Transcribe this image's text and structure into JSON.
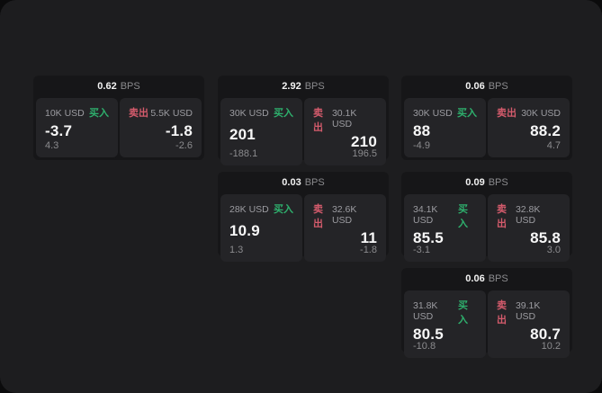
{
  "labels": {
    "bps_unit": "BPS",
    "buy": "买入",
    "sell": "卖出"
  },
  "colors": {
    "buy_green": "#2eb06d",
    "sell_red": "#d45b6c",
    "panel_bg": "#1d1d1f",
    "card_bg": "#161618",
    "tile_bg": "#242427"
  },
  "cards": [
    {
      "bps": "0.62",
      "buy": {
        "amount": "10K USD",
        "price": "-3.7",
        "change": "4.3"
      },
      "sell": {
        "amount": "5.5K USD",
        "price": "-1.8",
        "change": "-2.6"
      }
    },
    {
      "bps": "2.92",
      "buy": {
        "amount": "30K USD",
        "price": "201",
        "change": "-188.1"
      },
      "sell": {
        "amount": "30.1K USD",
        "price": "210",
        "change": "196.5"
      }
    },
    {
      "bps": "0.06",
      "buy": {
        "amount": "30K USD",
        "price": "88",
        "change": "-4.9"
      },
      "sell": {
        "amount": "30K USD",
        "price": "88.2",
        "change": "4.7"
      }
    },
    {
      "bps": "0.03",
      "buy": {
        "amount": "28K USD",
        "price": "10.9",
        "change": "1.3"
      },
      "sell": {
        "amount": "32.6K USD",
        "price": "11",
        "change": "-1.8"
      }
    },
    {
      "bps": "0.09",
      "buy": {
        "amount": "34.1K USD",
        "price": "85.5",
        "change": "-3.1"
      },
      "sell": {
        "amount": "32.8K USD",
        "price": "85.8",
        "change": "3.0"
      }
    },
    {
      "bps": "0.06",
      "buy": {
        "amount": "31.8K USD",
        "price": "80.5",
        "change": "-10.8"
      },
      "sell": {
        "amount": "39.1K USD",
        "price": "80.7",
        "change": "10.2"
      }
    }
  ]
}
